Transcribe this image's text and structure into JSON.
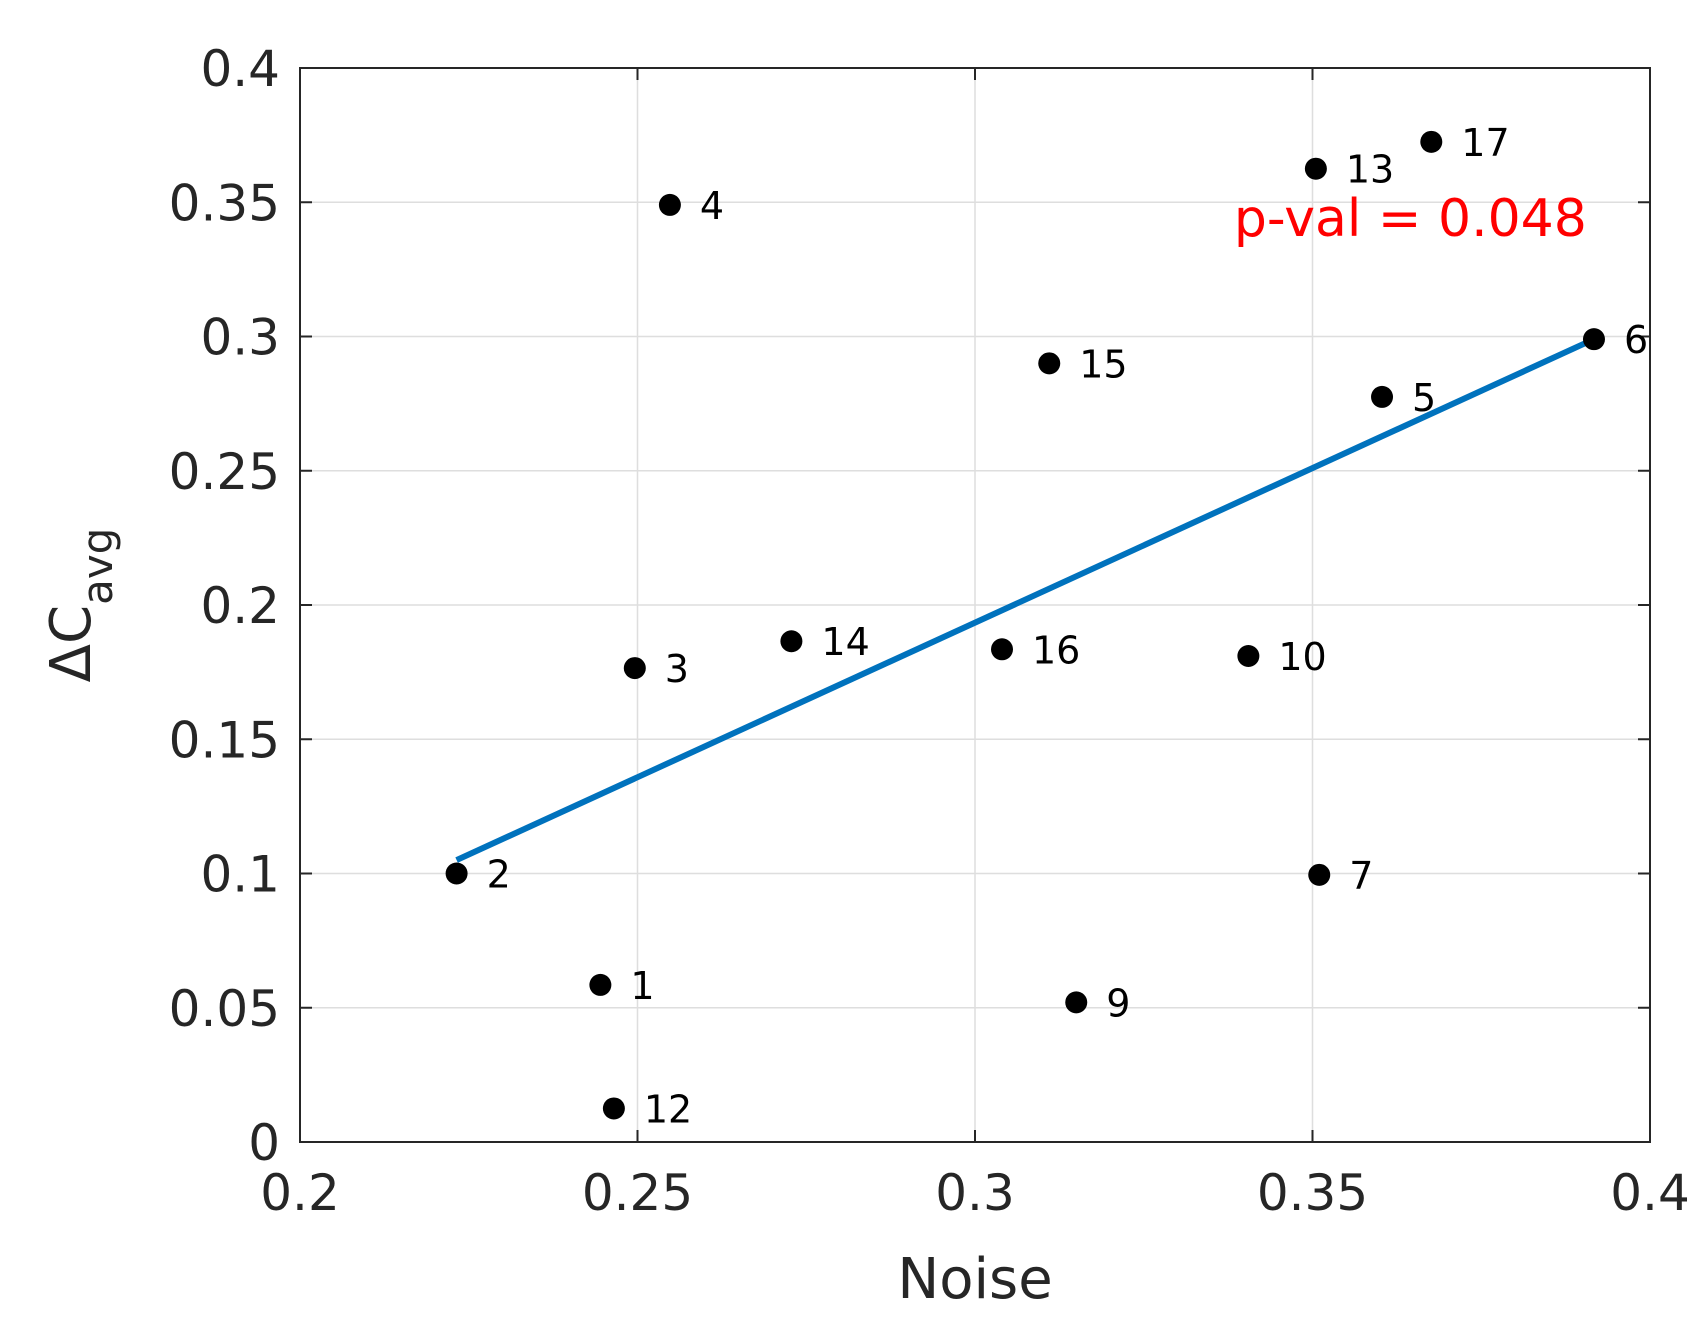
{
  "chart_data": {
    "type": "scatter",
    "title": "",
    "xlabel": "Noise",
    "ylabel": {
      "main": "ΔC",
      "subscript": "avg"
    },
    "xlim": [
      0.2,
      0.4
    ],
    "ylim": [
      0,
      0.4
    ],
    "x_ticks": [
      {
        "value": 0.2,
        "label": "0.2"
      },
      {
        "value": 0.25,
        "label": "0.25"
      },
      {
        "value": 0.3,
        "label": "0.3"
      },
      {
        "value": 0.35,
        "label": "0.35"
      },
      {
        "value": 0.4,
        "label": "0.4"
      }
    ],
    "y_ticks": [
      {
        "value": 0,
        "label": "0"
      },
      {
        "value": 0.05,
        "label": "0.05"
      },
      {
        "value": 0.1,
        "label": "0.1"
      },
      {
        "value": 0.15,
        "label": "0.15"
      },
      {
        "value": 0.2,
        "label": "0.2"
      },
      {
        "value": 0.25,
        "label": "0.25"
      },
      {
        "value": 0.3,
        "label": "0.3"
      },
      {
        "value": 0.35,
        "label": "0.35"
      },
      {
        "value": 0.4,
        "label": "0.4"
      }
    ],
    "grid": true,
    "points": [
      {
        "label": "1",
        "x": 0.2445,
        "y": 0.0585
      },
      {
        "label": "2",
        "x": 0.2232,
        "y": 0.1
      },
      {
        "label": "3",
        "x": 0.2496,
        "y": 0.1765
      },
      {
        "label": "4",
        "x": 0.2548,
        "y": 0.349
      },
      {
        "label": "5",
        "x": 0.3603,
        "y": 0.2775
      },
      {
        "label": "6",
        "x": 0.3917,
        "y": 0.299
      },
      {
        "label": "7",
        "x": 0.351,
        "y": 0.0995
      },
      {
        "label": "9",
        "x": 0.315,
        "y": 0.052
      },
      {
        "label": "10",
        "x": 0.3405,
        "y": 0.181
      },
      {
        "label": "12",
        "x": 0.2465,
        "y": 0.0125
      },
      {
        "label": "13",
        "x": 0.3505,
        "y": 0.3625
      },
      {
        "label": "14",
        "x": 0.2728,
        "y": 0.1865
      },
      {
        "label": "15",
        "x": 0.311,
        "y": 0.29
      },
      {
        "label": "16",
        "x": 0.304,
        "y": 0.1835
      },
      {
        "label": "17",
        "x": 0.3676,
        "y": 0.3725
      }
    ],
    "fit_line": {
      "x": [
        0.2232,
        0.3917
      ],
      "y": [
        0.105,
        0.299
      ],
      "color": "#0072BD"
    },
    "annotation": {
      "text": "p-val = 0.048",
      "x": 0.3645,
      "y": 0.3375,
      "color": "#FF0000"
    },
    "colors": {
      "points": "#000000",
      "grid": "#dedede",
      "axes": "#262626"
    }
  }
}
